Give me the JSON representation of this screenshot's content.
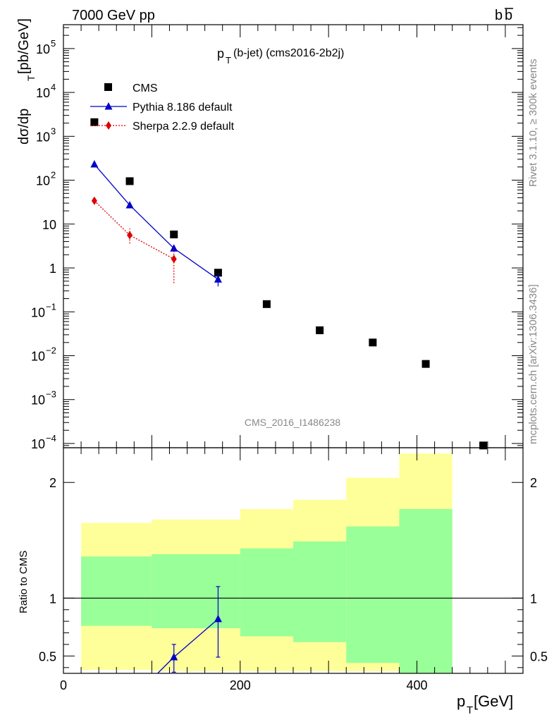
{
  "header": {
    "left": "7000 GeV pp",
    "right": "b",
    "right_bar": "b"
  },
  "side_text": {
    "top": "Rivet 3.1.10, ≥ 300k events",
    "bottom": "mcplots.cern.ch [arXiv:1306.3436]"
  },
  "chart_data": [
    {
      "type": "scatter",
      "title_main": "p",
      "title_sub": "T",
      "title_rest": "(b-jet) (cms2016-2b2j)",
      "watermark": "CMS_2016_I1486238",
      "ylabel_parts": [
        "dσ/dp",
        "T",
        " [pb/GeV]"
      ],
      "y_scale": "log",
      "xlim": [
        0,
        520
      ],
      "ylim": [
        8e-05,
        350000
      ],
      "y_ticks": [
        {
          "base": "10",
          "exp": "5",
          "value": 100000
        },
        {
          "base": "10",
          "exp": "4",
          "value": 10000
        },
        {
          "base": "10",
          "exp": "3",
          "value": 1000
        },
        {
          "base": "10",
          "exp": "2",
          "value": 100
        },
        {
          "base": "10",
          "exp": "",
          "value": 10
        },
        {
          "base": "1",
          "exp": "",
          "value": 1
        },
        {
          "base": "10",
          "exp": "−1",
          "value": 0.1
        },
        {
          "base": "10",
          "exp": "−2",
          "value": 0.01
        },
        {
          "base": "10",
          "exp": "−3",
          "value": 0.001
        },
        {
          "base": "10",
          "exp": "−4",
          "value": 0.0001
        }
      ],
      "legend": [
        {
          "name": "CMS",
          "color": "#000000",
          "marker": "square"
        },
        {
          "name": "Pythia 8.186 default",
          "color": "#0000cc",
          "marker": "triangle"
        },
        {
          "name": "Sherpa 2.2.9 default",
          "color": "#dd0000",
          "marker": "diamond"
        }
      ],
      "series": [
        {
          "name": "CMS",
          "color": "#000000",
          "x": [
            35,
            75,
            125,
            175,
            230,
            290,
            350,
            410,
            475
          ],
          "y": [
            2100,
            95,
            5.8,
            0.78,
            0.15,
            0.038,
            0.02,
            0.0065,
            9e-05
          ]
        },
        {
          "name": "Pythia 8.186 default",
          "color": "#0000cc",
          "x": [
            35,
            75,
            125,
            175
          ],
          "y": [
            230,
            27,
            2.8,
            0.55
          ],
          "err_lo": [
            210,
            24,
            2.3,
            0.38
          ],
          "err_hi": [
            250,
            30,
            3.3,
            0.75
          ]
        },
        {
          "name": "Sherpa 2.2.9 default",
          "color": "#dd0000",
          "x": [
            35,
            75,
            125
          ],
          "y": [
            34,
            5.6,
            1.6
          ],
          "err_lo": [
            29,
            3.6,
            0.45
          ],
          "err_hi": [
            40,
            8.0,
            2.7
          ]
        }
      ]
    },
    {
      "type": "area",
      "ylabel": "Ratio to CMS",
      "xlabel_main": "p",
      "xlabel_sub": "T",
      "xlabel_rest": " [GeV]",
      "xlim": [
        0,
        520
      ],
      "ylim": [
        0.35,
        2.3
      ],
      "x_ticks": [
        0,
        200,
        400
      ],
      "y_ticks": [
        0.5,
        1,
        2
      ],
      "reference_line": 1,
      "bands": {
        "yellow_color": "#ffff99",
        "green_color": "#99ff99",
        "bins": [
          {
            "x0": 20,
            "x1": 100,
            "y_lo": 0.38,
            "y_hi": 1.65,
            "g_lo": 0.76,
            "g_hi": 1.36
          },
          {
            "x0": 100,
            "x1": 200,
            "y_lo": 0.37,
            "y_hi": 1.68,
            "g_lo": 0.74,
            "g_hi": 1.38
          },
          {
            "x0": 200,
            "x1": 260,
            "y_lo": 0.37,
            "y_hi": 1.77,
            "g_lo": 0.67,
            "g_hi": 1.43
          },
          {
            "x0": 260,
            "x1": 320,
            "y_lo": 0.37,
            "y_hi": 1.85,
            "g_lo": 0.62,
            "g_hi": 1.49
          },
          {
            "x0": 320,
            "x1": 380,
            "y_lo": 0.37,
            "y_hi": 2.04,
            "g_lo": 0.44,
            "g_hi": 1.62
          },
          {
            "x0": 380,
            "x1": 440,
            "y_lo": 0.37,
            "y_hi": 2.25,
            "g_lo": 0.3,
            "g_hi": 1.77
          }
        ]
      },
      "series": [
        {
          "name": "Pythia 8.186 default",
          "color": "#0000cc",
          "x": [
            125,
            175
          ],
          "y": [
            0.49,
            0.82
          ],
          "err_lo": [
            0.36,
            0.49
          ],
          "err_hi": [
            0.6,
            1.1
          ],
          "line_from": {
            "x": 100,
            "y": 0.3
          }
        }
      ]
    }
  ]
}
